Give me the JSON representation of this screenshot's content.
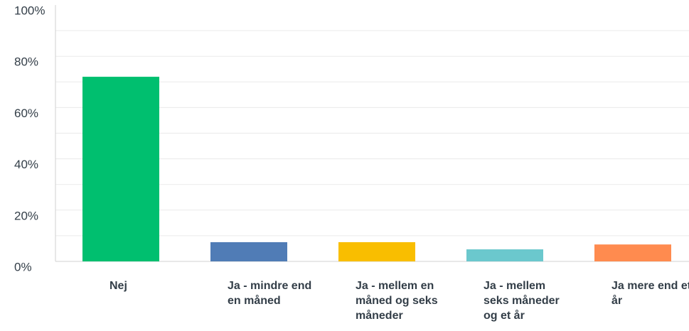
{
  "chart_data": {
    "type": "bar",
    "categories": [
      "Nej",
      "Ja - mindre end en måned",
      "Ja - mellem en måned og seks måneder",
      "Ja - mellem seks måneder og et år",
      "Ja mere end et år"
    ],
    "values": [
      72,
      7.5,
      7.5,
      4.7,
      6.6
    ],
    "colors": [
      "#00bf6f",
      "#507cb6",
      "#f9be00",
      "#6bc8cd",
      "#ff8b4f"
    ],
    "ylim": [
      0,
      100
    ],
    "yticks": [
      {
        "value": 0,
        "label": "0%"
      },
      {
        "value": 20,
        "label": "20%"
      },
      {
        "value": 40,
        "label": "40%"
      },
      {
        "value": 60,
        "label": "60%"
      },
      {
        "value": 80,
        "label": "80%"
      },
      {
        "value": 100,
        "label": "100%"
      }
    ],
    "minor_yticks": [
      10,
      30,
      50,
      70,
      90
    ],
    "grid": true
  }
}
